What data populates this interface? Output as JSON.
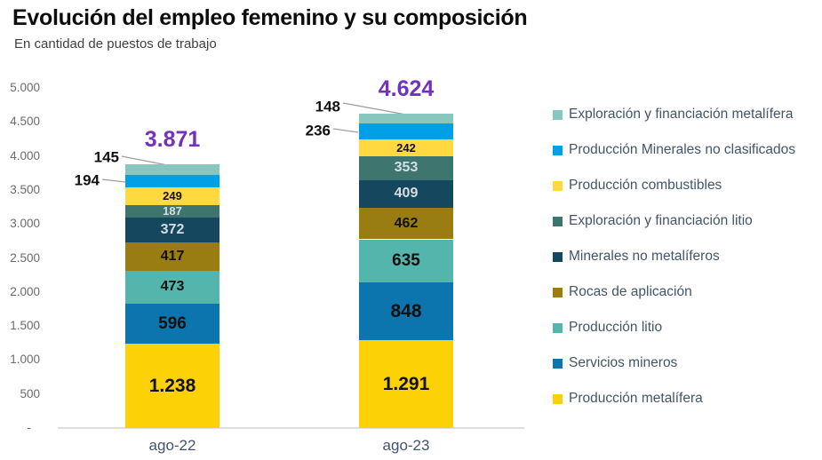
{
  "title": "Evolución del empleo femenino y su composición",
  "subtitle": "En cantidad de puestos de trabajo",
  "chart_data": {
    "type": "bar",
    "stacked": true,
    "categories": [
      "ago-22",
      "ago-23"
    ],
    "ylim": [
      0,
      5000
    ],
    "y_tick_labels": [
      "5.000",
      "4.500",
      "4.000",
      "3.500",
      "3.000",
      "2.500",
      "2.000",
      "1.500",
      "1.000",
      "500",
      "-"
    ],
    "grid": false,
    "legend_position": "right",
    "totals": [
      3871,
      4624
    ],
    "total_labels": [
      "3.871",
      "4.624"
    ],
    "total_color": "#7331BF",
    "series": [
      {
        "name": "Producción metalífera",
        "color": "#FCD106",
        "values": [
          1238,
          1291
        ],
        "value_labels": [
          "1.238",
          "1.291"
        ],
        "text": "dark",
        "label_placement": "inside"
      },
      {
        "name": "Servicios mineros",
        "color": "#0C75AD",
        "values": [
          596,
          848
        ],
        "value_labels": [
          "596",
          "848"
        ],
        "text": "dark",
        "label_placement": "inside"
      },
      {
        "name": "Producción litio",
        "color": "#53B5AB",
        "values": [
          473,
          635
        ],
        "value_labels": [
          "473",
          "635"
        ],
        "text": "dark",
        "label_placement": "inside"
      },
      {
        "name": "Rocas de aplicación",
        "color": "#9A7D12",
        "values": [
          417,
          462
        ],
        "value_labels": [
          "417",
          "462"
        ],
        "text": "dark",
        "label_placement": "inside"
      },
      {
        "name": "Minerales no metalíferos",
        "color": "#15485F",
        "values": [
          372,
          409
        ],
        "value_labels": [
          "372",
          "409"
        ],
        "text": "light",
        "label_placement": "inside"
      },
      {
        "name": "Exploración y financiación litio",
        "color": "#3E766F",
        "values": [
          187,
          353
        ],
        "value_labels": [
          "187",
          "353"
        ],
        "text": "light",
        "label_placement": "inside"
      },
      {
        "name": "Producción combustibles",
        "color": "#FFD93F",
        "values": [
          249,
          242
        ],
        "value_labels": [
          "249",
          "242"
        ],
        "text": "dark",
        "label_placement": "inside"
      },
      {
        "name": "Producción Minerales no clasificados",
        "color": "#00A0E6",
        "values": [
          194,
          236
        ],
        "value_labels": [
          "194",
          "236"
        ],
        "text": "dark",
        "label_placement": "outside"
      },
      {
        "name": "Exploración y financiación metalífera",
        "color": "#87C7C0",
        "values": [
          145,
          148
        ],
        "value_labels": [
          "145",
          "148"
        ],
        "text": "dark",
        "label_placement": "outside"
      }
    ]
  }
}
